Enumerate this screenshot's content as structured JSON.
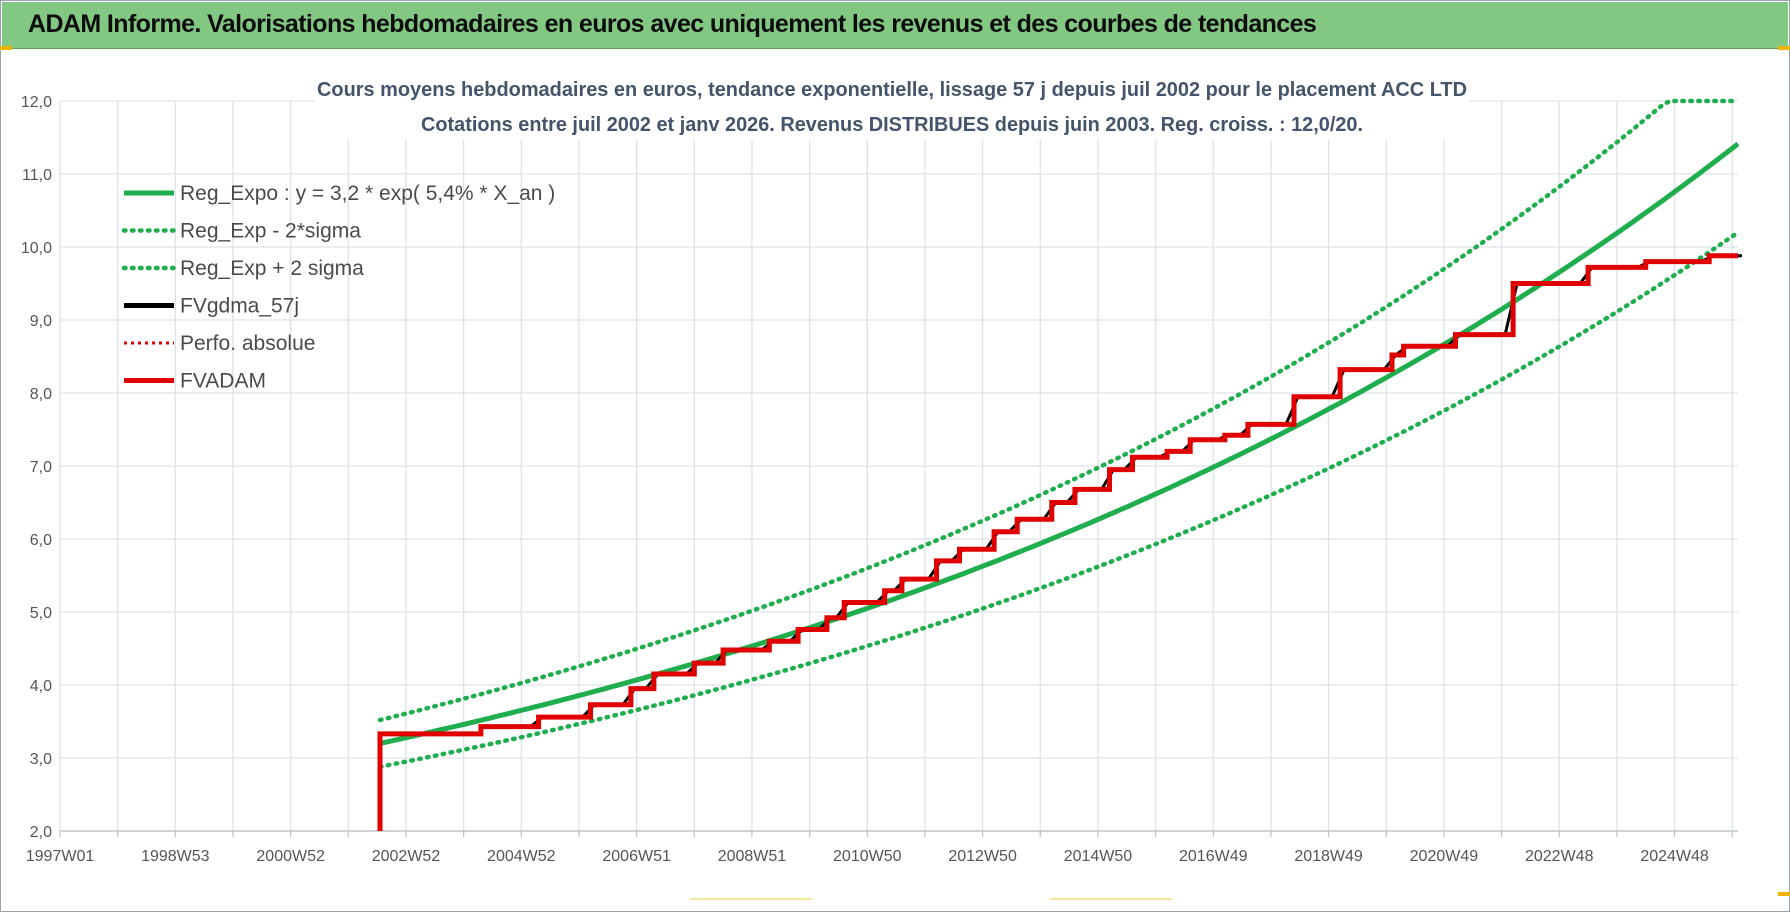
{
  "banner": {
    "title": "ADAM Informe. Valorisations hebdomadaires en euros avec uniquement les revenus et des courbes de tendances"
  },
  "chart_data": {
    "type": "line",
    "title_line1": "Cours moyens hebdomadaires en euros, tendance exponentielle, lissage 57 j depuis juil 2002 pour le placement ACC LTD",
    "title_line2": "Cotations entre juil 2002 et janv 2026. Revenus DISTRIBUES depuis juin 2003. Reg. croiss. : 12,0/20.",
    "xlabel": "",
    "ylabel": "",
    "ylim": [
      2.0,
      12.0
    ],
    "yticks": [
      "2,0",
      "3,0",
      "4,0",
      "5,0",
      "6,0",
      "7,0",
      "8,0",
      "9,0",
      "10,0",
      "11,0",
      "12,0"
    ],
    "x_range_years": [
      1997.0,
      2026.1
    ],
    "xticks": [
      {
        "label": "1997W01",
        "year": 1997.0
      },
      {
        "label": "1998W53",
        "year": 1999.0
      },
      {
        "label": "2000W52",
        "year": 2001.0
      },
      {
        "label": "2002W52",
        "year": 2003.0
      },
      {
        "label": "2004W52",
        "year": 2005.0
      },
      {
        "label": "2006W51",
        "year": 2007.0
      },
      {
        "label": "2008W51",
        "year": 2009.0
      },
      {
        "label": "2010W50",
        "year": 2011.0
      },
      {
        "label": "2012W50",
        "year": 2013.0
      },
      {
        "label": "2014W50",
        "year": 2015.0
      },
      {
        "label": "2016W49",
        "year": 2017.0
      },
      {
        "label": "2018W49",
        "year": 2019.0
      },
      {
        "label": "2020W49",
        "year": 2021.0
      },
      {
        "label": "2022W48",
        "year": 2023.0
      },
      {
        "label": "2024W48",
        "year": 2025.0
      }
    ],
    "grid": true,
    "legend_position": "top-left",
    "legend": [
      {
        "label": "Reg_Expo : y = 3,2 * exp( 5,4% *  X_an )",
        "color": "#1fae4e",
        "style": "solid"
      },
      {
        "label": "Reg_Exp - 2*sigma",
        "color": "#1fae4e",
        "style": "dotted"
      },
      {
        "label": "Reg_Exp + 2 sigma",
        "color": "#1fae4e",
        "style": "dotted"
      },
      {
        "label": "FVgdma_57j",
        "color": "#000000",
        "style": "solid"
      },
      {
        "label": "Perfo. absolue",
        "color": "#e00000",
        "style": "dotted"
      },
      {
        "label": "FVADAM",
        "color": "#e00000",
        "style": "solid"
      }
    ],
    "trend": {
      "a": 3.2,
      "rate": 0.054,
      "start_year": 2002.55,
      "end_year": 2026.1,
      "ymax_cap": 12.0
    },
    "sigma_bands": [
      {
        "name": "Reg_Exp - 2*sigma",
        "start_value": 2.88,
        "end_value": 10.2
      },
      {
        "name": "Reg_Exp + 2 sigma",
        "start_value": 3.52,
        "end_value": 12.0
      }
    ],
    "fvadam_steps": [
      {
        "x": 2002.55,
        "y": 2.0
      },
      {
        "x": 2002.55,
        "y": 3.33
      },
      {
        "x": 2004.3,
        "y": 3.43
      },
      {
        "x": 2005.3,
        "y": 3.56
      },
      {
        "x": 2006.2,
        "y": 3.73
      },
      {
        "x": 2006.9,
        "y": 3.95
      },
      {
        "x": 2007.3,
        "y": 4.15
      },
      {
        "x": 2008.0,
        "y": 4.3
      },
      {
        "x": 2008.5,
        "y": 4.48
      },
      {
        "x": 2009.3,
        "y": 4.6
      },
      {
        "x": 2009.8,
        "y": 4.76
      },
      {
        "x": 2010.3,
        "y": 4.92
      },
      {
        "x": 2010.6,
        "y": 5.13
      },
      {
        "x": 2011.3,
        "y": 5.29
      },
      {
        "x": 2011.6,
        "y": 5.45
      },
      {
        "x": 2012.2,
        "y": 5.7
      },
      {
        "x": 2012.6,
        "y": 5.86
      },
      {
        "x": 2013.2,
        "y": 6.1
      },
      {
        "x": 2013.6,
        "y": 6.27
      },
      {
        "x": 2014.2,
        "y": 6.5
      },
      {
        "x": 2014.6,
        "y": 6.68
      },
      {
        "x": 2015.2,
        "y": 6.95
      },
      {
        "x": 2015.6,
        "y": 7.12
      },
      {
        "x": 2016.2,
        "y": 7.2
      },
      {
        "x": 2016.6,
        "y": 7.36
      },
      {
        "x": 2017.2,
        "y": 7.42
      },
      {
        "x": 2017.6,
        "y": 7.57
      },
      {
        "x": 2018.4,
        "y": 7.95
      },
      {
        "x": 2019.2,
        "y": 8.32
      },
      {
        "x": 2020.1,
        "y": 8.52
      },
      {
        "x": 2020.3,
        "y": 8.64
      },
      {
        "x": 2021.2,
        "y": 8.8
      },
      {
        "x": 2022.2,
        "y": 9.5
      },
      {
        "x": 2023.5,
        "y": 9.72
      },
      {
        "x": 2024.5,
        "y": 9.8
      },
      {
        "x": 2025.6,
        "y": 9.88
      },
      {
        "x": 2026.1,
        "y": 9.88
      }
    ],
    "colors": {
      "trend": "#1fae4e",
      "fvadam": "#e00000",
      "fvgdma": "#000000",
      "grid": "#dde3e8",
      "axis_text": "#555555",
      "title_text": "#44546a"
    }
  }
}
